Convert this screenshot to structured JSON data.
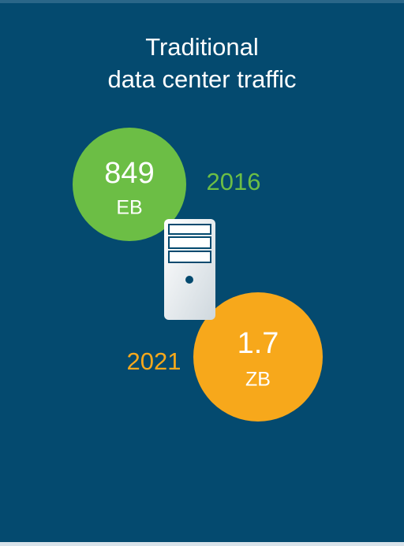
{
  "title": [
    "Traditional",
    "data center traffic"
  ],
  "items": [
    {
      "value": "849",
      "unit": "EB",
      "year": "2016"
    },
    {
      "value": "1.7",
      "unit": "ZB",
      "year": "2021"
    }
  ]
}
